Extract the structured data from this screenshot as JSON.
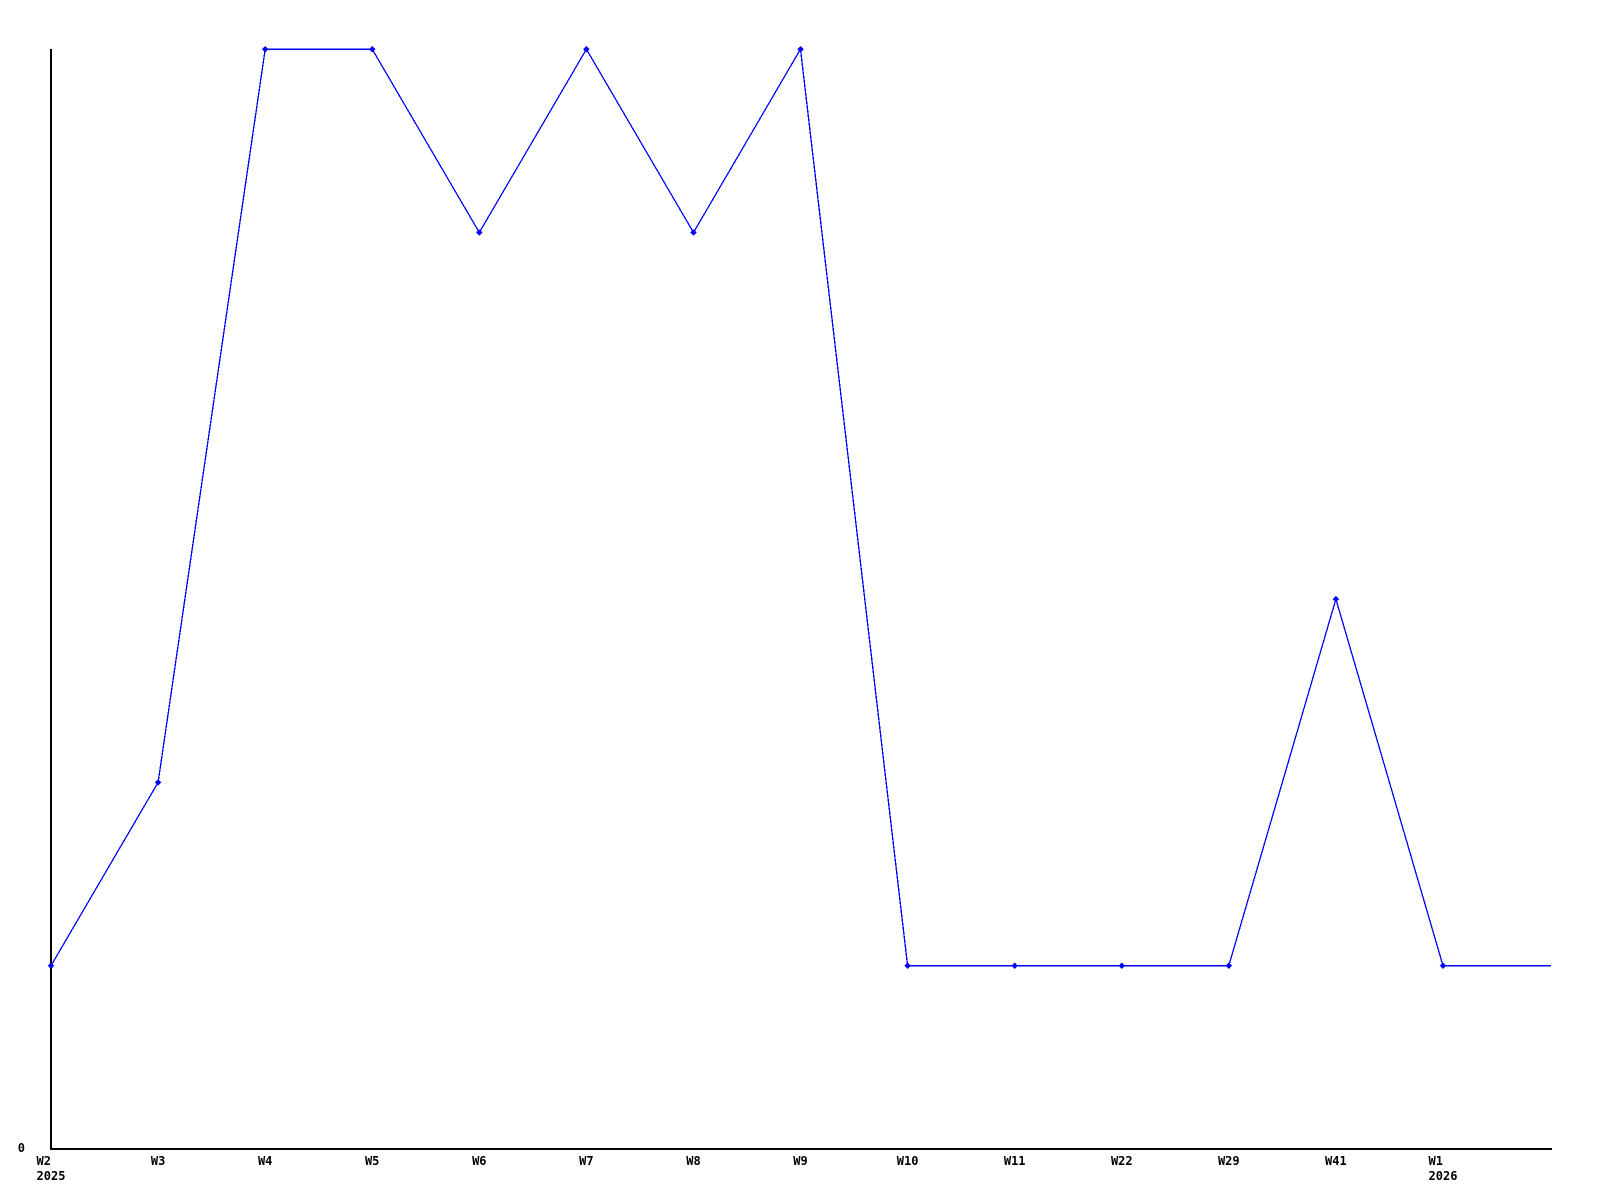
{
  "page": {
    "background_color": "#ffffff"
  },
  "chart_data": {
    "type": "line",
    "title": "",
    "subtitle": "",
    "xlabel": "",
    "ylabel": "",
    "series_count": 1,
    "x_tick_labels": [
      {
        "week": "W2",
        "year": "2025"
      },
      {
        "week": "W3",
        "year": ""
      },
      {
        "week": "W4",
        "year": ""
      },
      {
        "week": "W5",
        "year": ""
      },
      {
        "week": "W6",
        "year": ""
      },
      {
        "week": "W7",
        "year": ""
      },
      {
        "week": "W8",
        "year": ""
      },
      {
        "week": "W9",
        "year": ""
      },
      {
        "week": "W10",
        "year": ""
      },
      {
        "week": "W11",
        "year": ""
      },
      {
        "week": "W22",
        "year": ""
      },
      {
        "week": "W29",
        "year": ""
      },
      {
        "week": "W41",
        "year": ""
      },
      {
        "week": "W1",
        "year": "2026"
      }
    ],
    "values": [
      1,
      2,
      6,
      6,
      5,
      6,
      5,
      6,
      1,
      1,
      1,
      1,
      3,
      1
    ],
    "y_tick_labels": [
      "0"
    ],
    "ylim": [
      0,
      6
    ],
    "grid": false,
    "legend_position": "none",
    "line_color": "#0000ff",
    "marker_color": "#0000ff",
    "axis_color": "#000000",
    "text_color": "#000000",
    "marker_shape": "diamond",
    "line_extends_to_right_edge": true
  }
}
